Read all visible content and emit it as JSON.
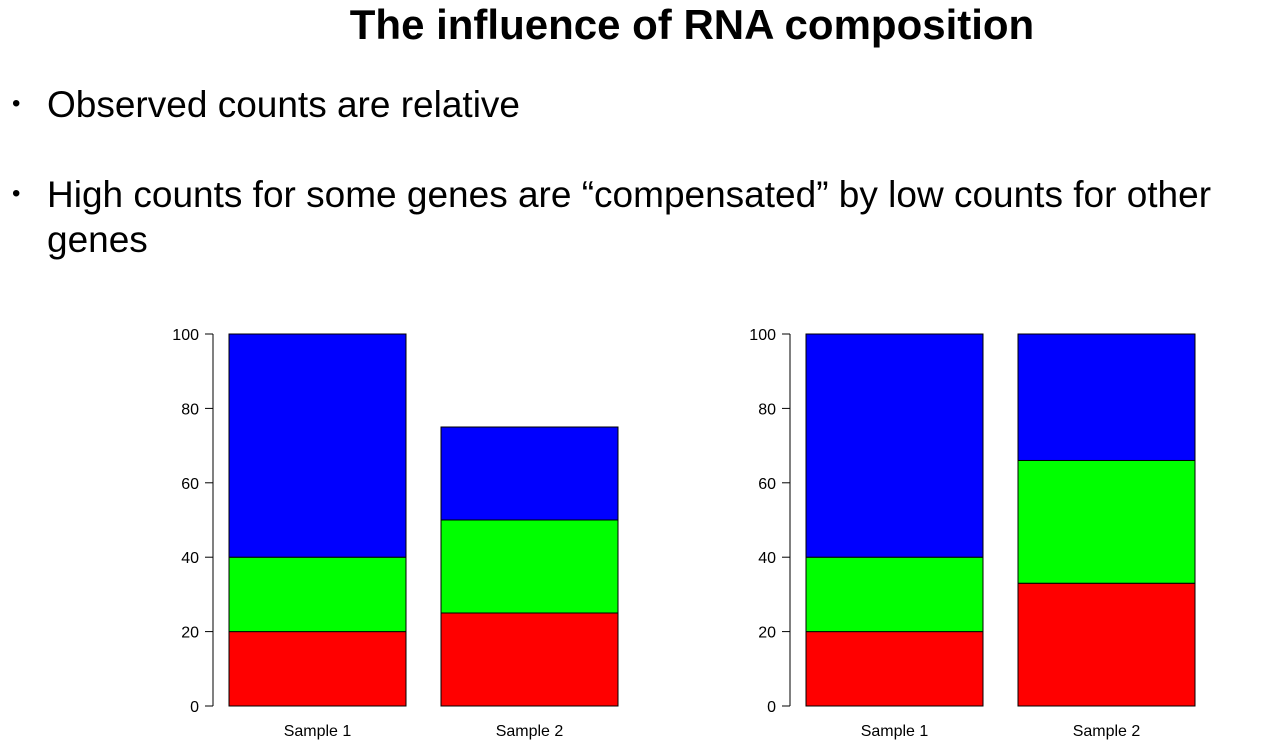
{
  "slide": {
    "title": "The influence of RNA composition",
    "bullets": [
      {
        "marker": "•",
        "text": "Observed counts are relative"
      },
      {
        "marker": "•",
        "text": "High counts for some genes are “compensated” by low counts for other genes"
      }
    ]
  },
  "colors": {
    "red": "#ff0000",
    "green": "#00ff00",
    "blue": "#0000ff"
  },
  "chart_data": [
    {
      "type": "bar",
      "stacked": true,
      "categories": [
        "Sample 1",
        "Sample 2"
      ],
      "series": [
        {
          "color": "#ff0000",
          "values": [
            20,
            25
          ]
        },
        {
          "color": "#00ff00",
          "values": [
            20,
            25
          ]
        },
        {
          "color": "#0000ff",
          "values": [
            60,
            25
          ]
        }
      ],
      "title": "",
      "xlabel": "",
      "ylabel": "",
      "ylim": [
        0,
        100
      ],
      "yticks": [
        0,
        20,
        40,
        60,
        80,
        100
      ],
      "grid": false,
      "legend": "none"
    },
    {
      "type": "bar",
      "stacked": true,
      "categories": [
        "Sample 1",
        "Sample 2"
      ],
      "series": [
        {
          "color": "#ff0000",
          "values": [
            20,
            33
          ]
        },
        {
          "color": "#00ff00",
          "values": [
            20,
            33
          ]
        },
        {
          "color": "#0000ff",
          "values": [
            60,
            34
          ]
        }
      ],
      "title": "",
      "xlabel": "",
      "ylabel": "",
      "ylim": [
        0,
        100
      ],
      "yticks": [
        0,
        20,
        40,
        60,
        80,
        100
      ],
      "grid": false,
      "legend": "none"
    }
  ]
}
